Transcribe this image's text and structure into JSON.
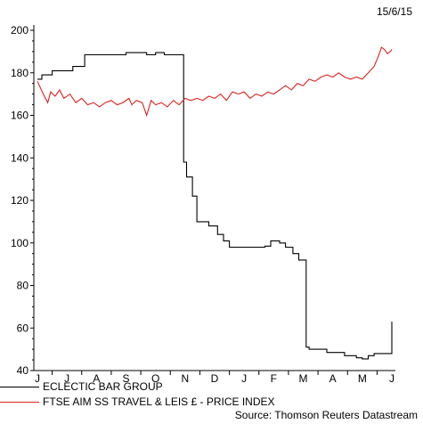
{
  "date_label": "15/6/15",
  "source": "Source: Thomson Reuters Datastream",
  "chart_data": {
    "type": "line",
    "title": "",
    "xlabel": "",
    "ylabel": "",
    "ylim": [
      40,
      200
    ],
    "yticks": [
      40,
      60,
      80,
      100,
      120,
      140,
      160,
      180,
      200
    ],
    "month_labels": [
      "J",
      "J",
      "A",
      "S",
      "O",
      "N",
      "D",
      "J",
      "F",
      "M",
      "A",
      "M",
      "J"
    ],
    "grid": false,
    "legend_position": "bottom-left",
    "series": [
      {
        "name": "ECLECTIC BAR GROUP",
        "color": "#000000",
        "step": true,
        "points": [
          [
            0.0,
            177
          ],
          [
            0.15,
            179
          ],
          [
            0.5,
            181
          ],
          [
            1.2,
            183
          ],
          [
            1.6,
            188.5
          ],
          [
            2.6,
            188.5
          ],
          [
            3.0,
            189.5
          ],
          [
            3.5,
            189.5
          ],
          [
            3.7,
            188.5
          ],
          [
            4.0,
            189.5
          ],
          [
            4.3,
            188.5
          ],
          [
            4.8,
            188.5
          ],
          [
            4.95,
            138
          ],
          [
            5.05,
            131
          ],
          [
            5.25,
            122
          ],
          [
            5.4,
            110
          ],
          [
            5.8,
            108
          ],
          [
            6.1,
            104
          ],
          [
            6.3,
            101
          ],
          [
            6.5,
            98
          ],
          [
            7.5,
            98
          ],
          [
            7.7,
            98.5
          ],
          [
            7.9,
            101
          ],
          [
            8.2,
            100
          ],
          [
            8.4,
            98
          ],
          [
            8.65,
            95
          ],
          [
            8.85,
            92
          ],
          [
            9.1,
            51
          ],
          [
            9.2,
            50
          ],
          [
            9.6,
            50
          ],
          [
            9.8,
            48.5
          ],
          [
            10.4,
            47
          ],
          [
            10.8,
            46
          ],
          [
            11.0,
            45.5
          ],
          [
            11.2,
            47
          ],
          [
            11.4,
            48
          ],
          [
            11.9,
            48
          ],
          [
            12.0,
            63
          ]
        ]
      },
      {
        "name": "FTSE AIM SS TRAVEL & LEIS £ - PRICE INDEX",
        "color": "#dd2222",
        "step": false,
        "points": [
          [
            0.0,
            176
          ],
          [
            0.1,
            173
          ],
          [
            0.2,
            170
          ],
          [
            0.35,
            166
          ],
          [
            0.45,
            171
          ],
          [
            0.6,
            169
          ],
          [
            0.75,
            172
          ],
          [
            0.9,
            168
          ],
          [
            1.1,
            170
          ],
          [
            1.3,
            166
          ],
          [
            1.5,
            168
          ],
          [
            1.7,
            165
          ],
          [
            1.9,
            166
          ],
          [
            2.1,
            164
          ],
          [
            2.3,
            166
          ],
          [
            2.5,
            167
          ],
          [
            2.7,
            165
          ],
          [
            2.9,
            166
          ],
          [
            3.1,
            168
          ],
          [
            3.2,
            165
          ],
          [
            3.35,
            167
          ],
          [
            3.55,
            166
          ],
          [
            3.7,
            160
          ],
          [
            3.85,
            167
          ],
          [
            4.0,
            165
          ],
          [
            4.2,
            166
          ],
          [
            4.4,
            164
          ],
          [
            4.6,
            167
          ],
          [
            4.8,
            165
          ],
          [
            5.0,
            168
          ],
          [
            5.2,
            167
          ],
          [
            5.4,
            168
          ],
          [
            5.6,
            167
          ],
          [
            5.8,
            169
          ],
          [
            6.0,
            168
          ],
          [
            6.2,
            170
          ],
          [
            6.4,
            167
          ],
          [
            6.6,
            171
          ],
          [
            6.8,
            170
          ],
          [
            7.0,
            171
          ],
          [
            7.2,
            168
          ],
          [
            7.4,
            170
          ],
          [
            7.6,
            169
          ],
          [
            7.8,
            171
          ],
          [
            8.0,
            170
          ],
          [
            8.2,
            172
          ],
          [
            8.4,
            174
          ],
          [
            8.6,
            172
          ],
          [
            8.8,
            175
          ],
          [
            9.0,
            174
          ],
          [
            9.2,
            177
          ],
          [
            9.4,
            176
          ],
          [
            9.6,
            178
          ],
          [
            9.8,
            179
          ],
          [
            10.0,
            178
          ],
          [
            10.2,
            180
          ],
          [
            10.4,
            178
          ],
          [
            10.6,
            177
          ],
          [
            10.8,
            178
          ],
          [
            11.0,
            177
          ],
          [
            11.2,
            180
          ],
          [
            11.4,
            183
          ],
          [
            11.55,
            188
          ],
          [
            11.65,
            192
          ],
          [
            11.75,
            191
          ],
          [
            11.85,
            189
          ],
          [
            11.95,
            190
          ],
          [
            12.0,
            191
          ]
        ]
      }
    ]
  }
}
